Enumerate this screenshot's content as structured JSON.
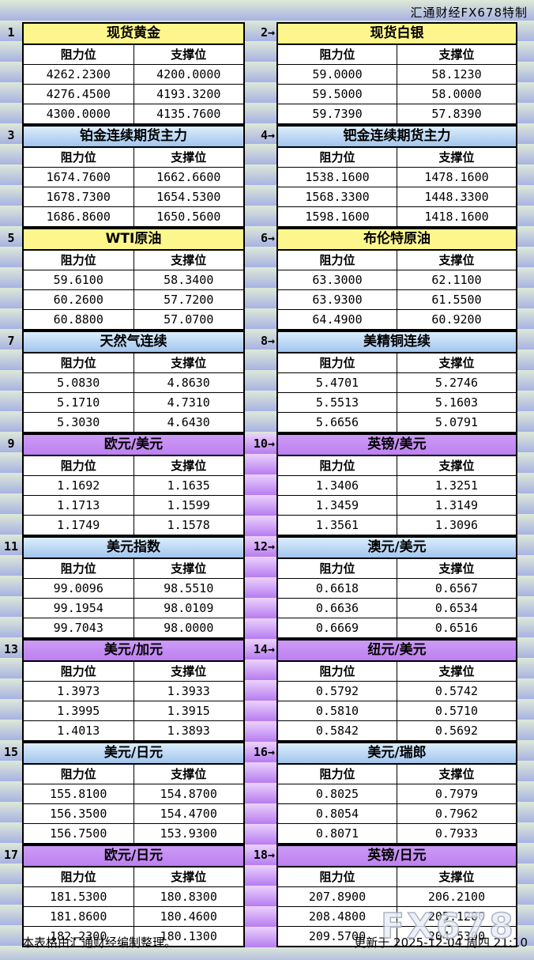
{
  "brand": "汇通财经FX678特制",
  "watermark": "FX678",
  "footer": {
    "left": "本表格由汇通财经编制整理。",
    "right": "更新于 2025-12-04 周四 21:10"
  },
  "colors": {
    "title_yellow": "#fdf68c",
    "title_blue_top": "#dceefb",
    "title_blue_bottom": "#a2c5ee",
    "title_purple": "#c58ff2",
    "band_green": "#dde9d7",
    "band_blue": "#a8b2e3",
    "gutter_purple_light": "#ecd2fc",
    "gutter_purple_dark": "#b67cf0",
    "cell_bg": "#ffffff",
    "border": "#000000"
  },
  "chart_data": {
    "type": "table",
    "column_headers": [
      "阻力位",
      "支撑位"
    ],
    "panel_rows": [
      {
        "section": "commodity",
        "gutter": "green",
        "left": {
          "label": "1",
          "title": "现货黄金",
          "style": "yellow",
          "rows": [
            [
              "4262.2300",
              "4200.0000"
            ],
            [
              "4276.4500",
              "4193.3200"
            ],
            [
              "4300.0000",
              "4135.7600"
            ]
          ]
        },
        "right": {
          "label": "2→",
          "title": "现货白银",
          "style": "yellow",
          "rows": [
            [
              "59.0000",
              "58.1230"
            ],
            [
              "59.5000",
              "58.0000"
            ],
            [
              "59.7390",
              "57.8390"
            ]
          ]
        }
      },
      {
        "section": "commodity",
        "gutter": "green",
        "left": {
          "label": "3",
          "title": "铂金连续期货主力",
          "style": "blue",
          "rows": [
            [
              "1674.7600",
              "1662.6600"
            ],
            [
              "1678.7300",
              "1654.5300"
            ],
            [
              "1686.8600",
              "1650.5600"
            ]
          ]
        },
        "right": {
          "label": "4→",
          "title": "钯金连续期货主力",
          "style": "blue",
          "rows": [
            [
              "1538.1600",
              "1478.1600"
            ],
            [
              "1568.3300",
              "1448.3300"
            ],
            [
              "1598.1600",
              "1418.1600"
            ]
          ]
        }
      },
      {
        "section": "commodity",
        "gutter": "green",
        "left": {
          "label": "5",
          "title": "WTI原油",
          "style": "yellow",
          "rows": [
            [
              "59.6100",
              "58.3400"
            ],
            [
              "60.2600",
              "57.7200"
            ],
            [
              "60.8800",
              "57.0700"
            ]
          ]
        },
        "right": {
          "label": "6→",
          "title": "布伦特原油",
          "style": "yellow",
          "rows": [
            [
              "63.3000",
              "62.1100"
            ],
            [
              "63.9300",
              "61.5500"
            ],
            [
              "64.4900",
              "60.9200"
            ]
          ]
        }
      },
      {
        "section": "commodity",
        "gutter": "green",
        "left": {
          "label": "7",
          "title": "天然气连续",
          "style": "blue",
          "rows": [
            [
              "5.0830",
              "4.8630"
            ],
            [
              "5.1710",
              "4.7310"
            ],
            [
              "5.3030",
              "4.6430"
            ]
          ]
        },
        "right": {
          "label": "8→",
          "title": "美精铜连续",
          "style": "blue",
          "rows": [
            [
              "5.4701",
              "5.2746"
            ],
            [
              "5.5513",
              "5.1603"
            ],
            [
              "5.6656",
              "5.0791"
            ]
          ]
        }
      },
      {
        "section": "currency",
        "gutter": "purple",
        "left": {
          "label": "9",
          "title": "欧元/美元",
          "style": "purple",
          "rows": [
            [
              "1.1692",
              "1.1635"
            ],
            [
              "1.1713",
              "1.1599"
            ],
            [
              "1.1749",
              "1.1578"
            ]
          ]
        },
        "right": {
          "label": "10→",
          "title": "英镑/美元",
          "style": "purple",
          "rows": [
            [
              "1.3406",
              "1.3251"
            ],
            [
              "1.3459",
              "1.3149"
            ],
            [
              "1.3561",
              "1.3096"
            ]
          ]
        }
      },
      {
        "section": "currency",
        "gutter": "purple",
        "left": {
          "label": "11",
          "title": "美元指数",
          "style": "blue",
          "rows": [
            [
              "99.0096",
              "98.5510"
            ],
            [
              "99.1954",
              "98.0109"
            ],
            [
              "99.7043",
              "98.0000"
            ]
          ]
        },
        "right": {
          "label": "12→",
          "title": "澳元/美元",
          "style": "blue",
          "rows": [
            [
              "0.6618",
              "0.6567"
            ],
            [
              "0.6636",
              "0.6534"
            ],
            [
              "0.6669",
              "0.6516"
            ]
          ]
        }
      },
      {
        "section": "currency",
        "gutter": "purple",
        "left": {
          "label": "13",
          "title": "美元/加元",
          "style": "purple",
          "rows": [
            [
              "1.3973",
              "1.3933"
            ],
            [
              "1.3995",
              "1.3915"
            ],
            [
              "1.4013",
              "1.3893"
            ]
          ]
        },
        "right": {
          "label": "14→",
          "title": "纽元/美元",
          "style": "purple",
          "rows": [
            [
              "0.5792",
              "0.5742"
            ],
            [
              "0.5810",
              "0.5710"
            ],
            [
              "0.5842",
              "0.5692"
            ]
          ]
        }
      },
      {
        "section": "currency",
        "gutter": "purple",
        "left": {
          "label": "15",
          "title": "美元/日元",
          "style": "blue",
          "rows": [
            [
              "155.8100",
              "154.8700"
            ],
            [
              "156.3500",
              "154.4700"
            ],
            [
              "156.7500",
              "153.9300"
            ]
          ]
        },
        "right": {
          "label": "16→",
          "title": "美元/瑞郎",
          "style": "blue",
          "rows": [
            [
              "0.8025",
              "0.7979"
            ],
            [
              "0.8054",
              "0.7962"
            ],
            [
              "0.8071",
              "0.7933"
            ]
          ]
        }
      },
      {
        "section": "currency",
        "gutter": "purple",
        "left": {
          "label": "17",
          "title": "欧元/日元",
          "style": "purple",
          "rows": [
            [
              "181.5300",
              "180.8300"
            ],
            [
              "181.8600",
              "180.4600"
            ],
            [
              "182.2300",
              "180.1300"
            ]
          ]
        },
        "right": {
          "label": "18→",
          "title": "英镑/日元",
          "style": "purple",
          "rows": [
            [
              "207.8900",
              "206.2100"
            ],
            [
              "208.4800",
              "205.1200"
            ],
            [
              "209.5700",
              "204.5300"
            ]
          ]
        }
      }
    ]
  }
}
